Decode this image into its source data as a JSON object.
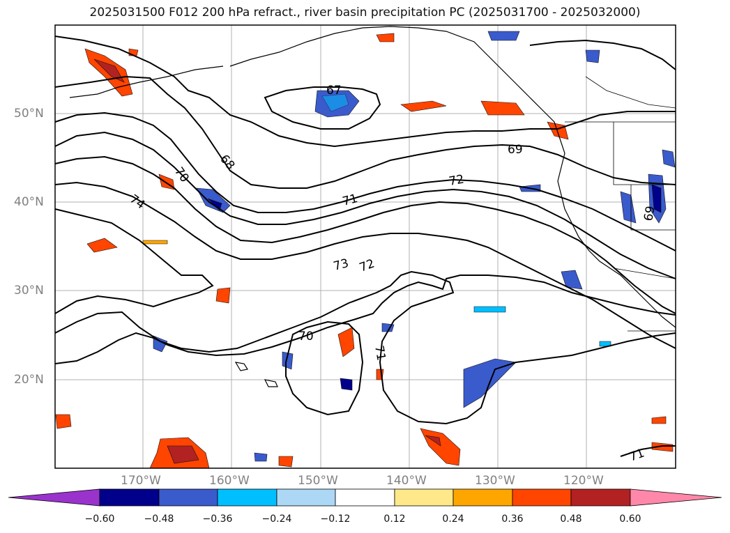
{
  "title": "2025031500 F012 200 hPa refract., river basin precipitation PC (2025031700 - 2025032000)",
  "lat_ticks": [
    "50°N",
    "40°N",
    "30°N",
    "20°N"
  ],
  "lon_ticks": [
    "170°W",
    "160°W",
    "150°W",
    "140°W",
    "130°W",
    "120°W"
  ],
  "contour_labels": [
    "67",
    "68",
    "69",
    "70",
    "71",
    "72",
    "73",
    "74",
    "70",
    "71",
    "72",
    "71",
    "69"
  ],
  "colorbar": {
    "tick_labels": [
      "−0.60",
      "−0.48",
      "−0.36",
      "−0.24",
      "−0.12",
      "0.12",
      "0.24",
      "0.36",
      "0.48",
      "0.60"
    ],
    "colors": [
      "#9933cc",
      "#00008b",
      "#3a5bcc",
      "#00bfff",
      "#add8f5",
      "#ffffff",
      "#ffe88a",
      "#ffa500",
      "#ff4500",
      "#b22222",
      "#ff88aa"
    ]
  },
  "map": {
    "extent": {
      "lon_min": -180,
      "lon_max": -110,
      "lat_min": 10,
      "lat_max": 60
    },
    "field": "200 hPa refractivity contours with precipitation PC shading"
  }
}
